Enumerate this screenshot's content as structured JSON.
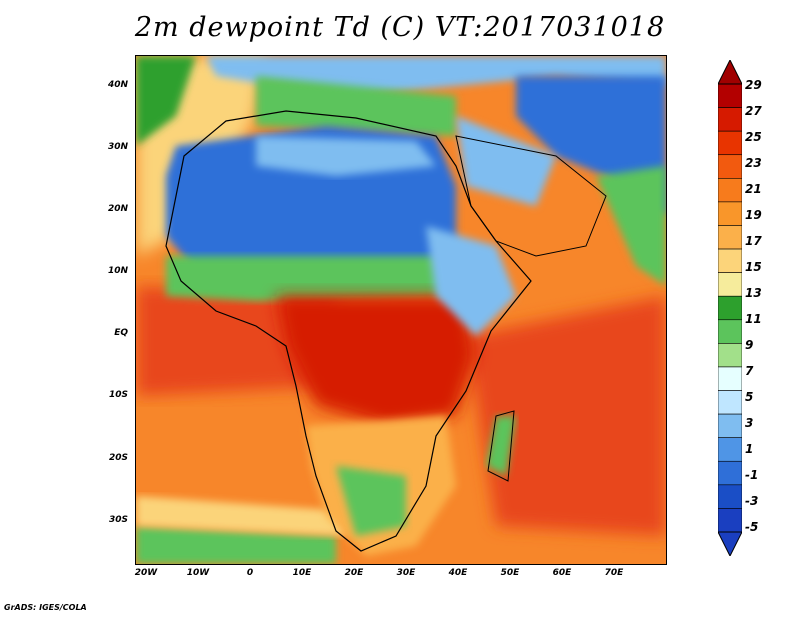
{
  "title": "2m dewpoint Td (C) VT:2017031018",
  "footer": "GrADS: IGES/COLA",
  "lat_labels": [
    "40N",
    "30N",
    "20N",
    "10N",
    "EQ",
    "10S",
    "20S",
    "30S"
  ],
  "lon_labels": [
    "20W",
    "10W",
    "0",
    "10E",
    "20E",
    "30E",
    "40E",
    "50E",
    "60E",
    "70E"
  ],
  "colorbar": {
    "labels": [
      "29",
      "27",
      "25",
      "23",
      "21",
      "19",
      "17",
      "15",
      "13",
      "11",
      "9",
      "7",
      "5",
      "3",
      "1",
      "-1",
      "-3",
      "-5"
    ],
    "colors": [
      "#b30000",
      "#d61a00",
      "#e83400",
      "#f25a0f",
      "#f77b1c",
      "#f9962a",
      "#fbb04a",
      "#fcd47a",
      "#f6ec9c",
      "#2da02d",
      "#5cc45c",
      "#a2e08a",
      "#e6ffff",
      "#bfe6ff",
      "#7fbdf0",
      "#4f95e6",
      "#2f6fd8",
      "#1a4ec6",
      "#1a3fc0"
    ]
  }
}
